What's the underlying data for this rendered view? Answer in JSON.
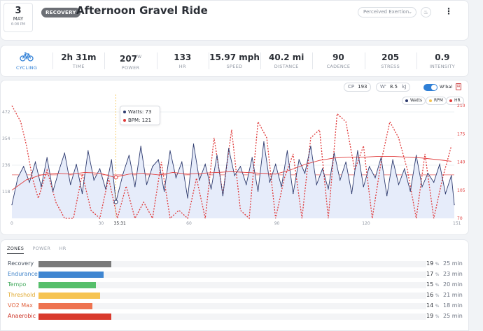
{
  "header": {
    "date_day": "3",
    "date_month": "MAY",
    "date_time": "6:08 PM",
    "badge": "RECOVERY",
    "title": "Afternoon Gravel Ride",
    "perceived_exertion": "Perceived Exertion"
  },
  "stats": [
    {
      "value": "",
      "label": "CYCLING",
      "icon": "bike-icon"
    },
    {
      "value": "2h 31m",
      "label": "TIME"
    },
    {
      "value": "207",
      "unit": "W",
      "label": "POWER"
    },
    {
      "value": "133",
      "label": "HR"
    },
    {
      "value": "15.97 mph",
      "label": "SPEED"
    },
    {
      "value": "40.2 mi",
      "label": "DISTANCE"
    },
    {
      "value": "90",
      "label": "CADENCE"
    },
    {
      "value": "205",
      "label": "STRESS"
    },
    {
      "value": "0.9",
      "label": "INTENSITY"
    }
  ],
  "chart_controls": {
    "cp_label": "CP",
    "cp_value": "193",
    "w_label": "W'",
    "w_value": "8.5",
    "w_unit": "kJ",
    "wbal_label": "W'bal",
    "legend_watts": "Watts",
    "legend_rpm": "RPM",
    "legend_hr": "HR"
  },
  "tooltip": {
    "watts_label": "Watts:",
    "watts_value": "73",
    "bpm_label": "BPM:",
    "bpm_value": "121",
    "time_label": "35:31"
  },
  "chart_data": {
    "type": "line",
    "x_ticks": [
      "0",
      "30",
      "60",
      "90",
      "120",
      "151"
    ],
    "xlim": [
      0,
      151
    ],
    "y_left_ticks": [
      "472",
      "354",
      "236",
      "118"
    ],
    "y_left_range": [
      0,
      500
    ],
    "y_right_ticks": [
      "210",
      "175",
      "140",
      "105",
      "70"
    ],
    "y_right_range": [
      70,
      210
    ],
    "cp_line_watts": 193,
    "series": [
      {
        "name": "Watts",
        "color": "#2d3a6e",
        "axis": "left",
        "x": [
          0,
          2,
          4,
          6,
          8,
          10,
          12,
          14,
          16,
          18,
          20,
          22,
          24,
          26,
          28,
          30,
          32,
          34,
          35.5,
          38,
          40,
          42,
          44,
          46,
          48,
          50,
          52,
          54,
          56,
          58,
          60,
          62,
          64,
          66,
          68,
          70,
          72,
          74,
          76,
          78,
          80,
          82,
          84,
          86,
          88,
          90,
          92,
          94,
          96,
          98,
          100,
          102,
          104,
          106,
          108,
          110,
          112,
          114,
          116,
          118,
          120,
          122,
          124,
          126,
          128,
          130,
          132,
          134,
          136,
          138,
          140,
          142,
          144,
          146,
          148,
          150,
          151
        ],
        "values": [
          60,
          180,
          230,
          160,
          250,
          140,
          270,
          120,
          210,
          290,
          150,
          240,
          110,
          300,
          170,
          220,
          130,
          260,
          73,
          200,
          280,
          140,
          320,
          150,
          230,
          260,
          120,
          300,
          180,
          250,
          90,
          330,
          170,
          240,
          130,
          280,
          100,
          310,
          190,
          230,
          150,
          270,
          120,
          340,
          160,
          240,
          140,
          300,
          110,
          260,
          200,
          320,
          150,
          220,
          130,
          290,
          170,
          250,
          110,
          300,
          140,
          230,
          180,
          270,
          100,
          260,
          150,
          220,
          120,
          280,
          140,
          200,
          160,
          240,
          110,
          190,
          60
        ]
      },
      {
        "name": "HR",
        "color": "#e03a3a",
        "axis": "right",
        "x": [
          0,
          5,
          10,
          15,
          20,
          25,
          30,
          35,
          40,
          45,
          50,
          55,
          60,
          65,
          70,
          75,
          80,
          85,
          90,
          95,
          100,
          105,
          110,
          115,
          120,
          125,
          130,
          135,
          140,
          145,
          150
        ],
        "values": [
          105,
          118,
          124,
          126,
          125,
          127,
          126,
          121,
          125,
          126,
          124,
          127,
          125,
          126,
          127,
          128,
          127,
          126,
          125,
          130,
          137,
          142,
          145,
          146,
          146,
          147,
          147,
          146,
          145,
          143,
          141
        ]
      },
      {
        "name": "RPM",
        "color": "#e03a3a",
        "axis": "right",
        "dashed": true,
        "x": [
          0,
          3,
          5,
          7,
          9,
          12,
          15,
          18,
          21,
          24,
          27,
          30,
          33,
          36,
          39,
          42,
          45,
          48,
          51,
          54,
          57,
          60,
          63,
          66,
          69,
          72,
          75,
          78,
          81,
          84,
          87,
          90,
          93,
          96,
          99,
          102,
          105,
          108,
          111,
          114,
          117,
          120,
          123,
          126,
          129,
          132,
          135,
          138,
          141,
          144,
          147,
          150
        ],
        "values": [
          210,
          190,
          160,
          120,
          95,
          130,
          90,
          70,
          70,
          125,
          80,
          70,
          120,
          70,
          110,
          70,
          90,
          70,
          140,
          70,
          80,
          70,
          120,
          70,
          170,
          100,
          180,
          80,
          70,
          190,
          170,
          70,
          120,
          150,
          70,
          170,
          180,
          70,
          200,
          190,
          130,
          160,
          70,
          140,
          190,
          170,
          130,
          70,
          150,
          70,
          120,
          160
        ]
      }
    ]
  },
  "zones": {
    "tabs": [
      "ZONES",
      "POWER",
      "HR"
    ],
    "rows": [
      {
        "name": "Recovery",
        "pct": 19,
        "time": "25 min",
        "color": "#7a7a7a",
        "name_color": "#4b5563"
      },
      {
        "name": "Endurance",
        "pct": 17,
        "time": "23 min",
        "color": "#3f86d1",
        "name_color": "#3a7fc7"
      },
      {
        "name": "Tempo",
        "pct": 15,
        "time": "20 min",
        "color": "#56bf6b",
        "name_color": "#3fa85a"
      },
      {
        "name": "Threshold",
        "pct": 16,
        "time": "21 min",
        "color": "#f6c453",
        "name_color": "#e0a82e"
      },
      {
        "name": "VO2 Max",
        "pct": 14,
        "time": "18 min",
        "color": "#ee7350",
        "name_color": "#e0613d"
      },
      {
        "name": "Anaerobic",
        "pct": 19,
        "time": "25 min",
        "color": "#d93a2d",
        "name_color": "#cc3326"
      }
    ]
  }
}
